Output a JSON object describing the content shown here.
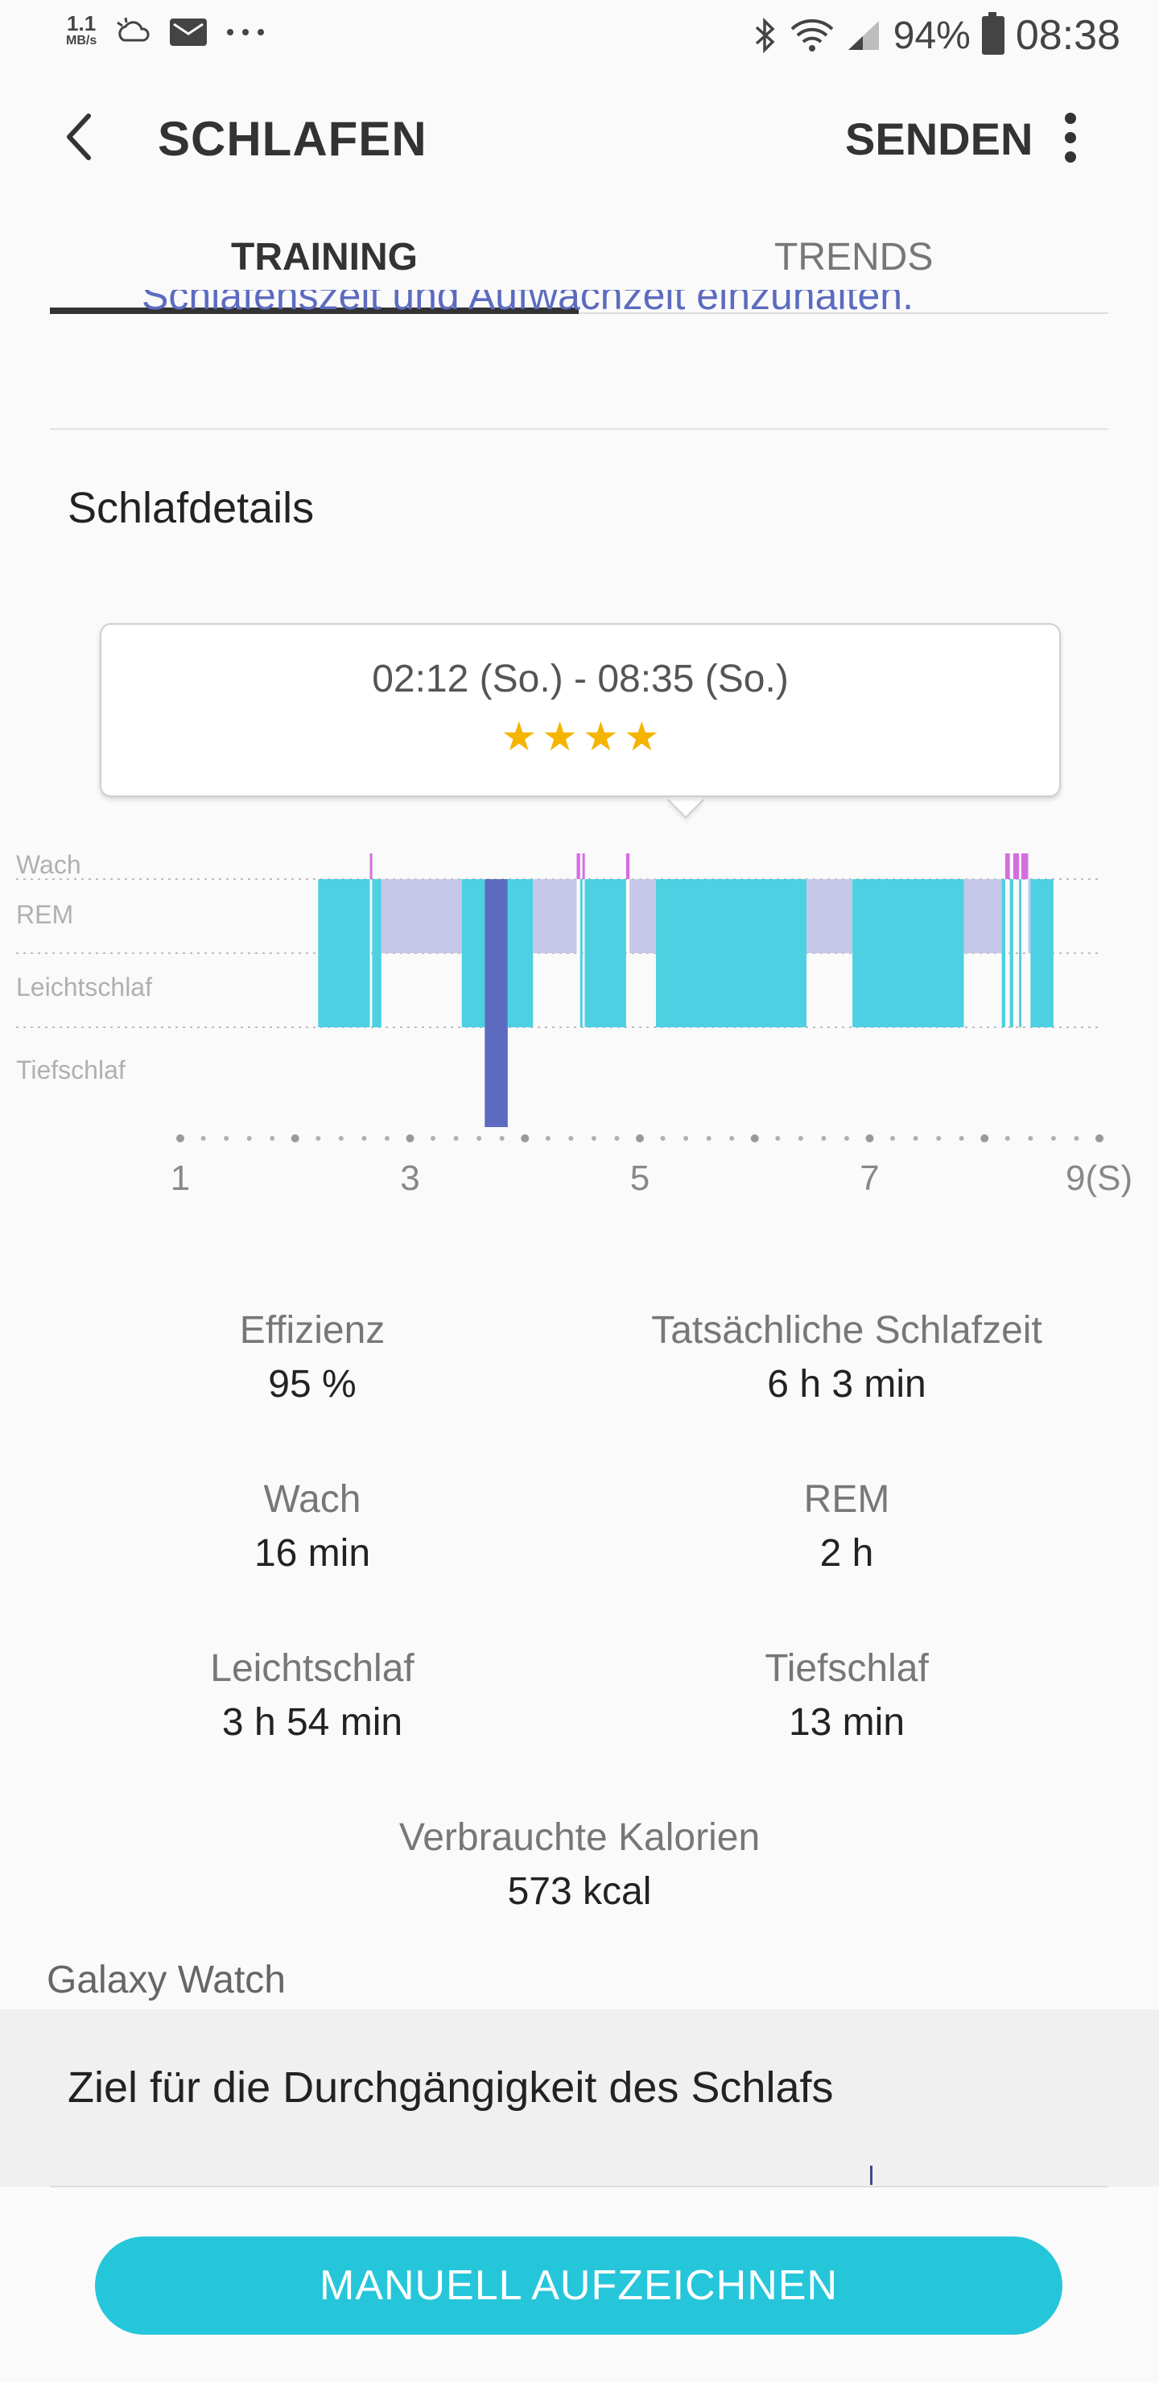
{
  "status_bar": {
    "speed_value": "1.1",
    "speed_unit": "MB/s",
    "battery": "94%",
    "time": "08:38"
  },
  "appbar": {
    "title": "SCHLAFEN",
    "send_label": "SENDEN"
  },
  "tabs": [
    {
      "label": "TRAINING",
      "active": true
    },
    {
      "label": "TRENDS",
      "active": false
    }
  ],
  "clipped_text": "Schlafenszeit und Aufwachzeit einzuhalten.",
  "section_title": "Schlafdetails",
  "bubble": {
    "range": "02:12 (So.) - 08:35 (So.)",
    "stars": 4
  },
  "chart_data": {
    "type": "bar",
    "stage_labels": [
      "Wach",
      "REM",
      "Leichtschlaf",
      "Tiefschlaf"
    ],
    "x_ticks": [
      "1",
      "3",
      "5",
      "7",
      "9(S)"
    ],
    "xlim": [
      1,
      9
    ],
    "colors": {
      "wach": "#d46ee0",
      "rem": "#c5c8e8",
      "leicht": "#4dd0e1",
      "tief": "#5c6bc0"
    },
    "segments": [
      {
        "start": 2.2,
        "end": 2.65,
        "stage": "leicht"
      },
      {
        "start": 2.65,
        "end": 2.67,
        "stage": "wach"
      },
      {
        "start": 2.67,
        "end": 2.75,
        "stage": "leicht"
      },
      {
        "start": 2.75,
        "end": 3.45,
        "stage": "rem"
      },
      {
        "start": 3.45,
        "end": 3.65,
        "stage": "leicht"
      },
      {
        "start": 3.65,
        "end": 3.85,
        "stage": "tief"
      },
      {
        "start": 3.85,
        "end": 4.07,
        "stage": "leicht"
      },
      {
        "start": 4.07,
        "end": 4.45,
        "stage": "rem"
      },
      {
        "start": 4.45,
        "end": 4.48,
        "stage": "wach"
      },
      {
        "start": 4.48,
        "end": 4.5,
        "stage": "leicht"
      },
      {
        "start": 4.5,
        "end": 4.52,
        "stage": "wach"
      },
      {
        "start": 4.52,
        "end": 4.88,
        "stage": "leicht"
      },
      {
        "start": 4.88,
        "end": 4.91,
        "stage": "wach"
      },
      {
        "start": 4.91,
        "end": 5.14,
        "stage": "rem"
      },
      {
        "start": 5.14,
        "end": 6.45,
        "stage": "leicht"
      },
      {
        "start": 6.45,
        "end": 6.85,
        "stage": "rem"
      },
      {
        "start": 6.85,
        "end": 7.82,
        "stage": "leicht"
      },
      {
        "start": 7.82,
        "end": 8.15,
        "stage": "rem"
      },
      {
        "start": 8.15,
        "end": 8.18,
        "stage": "leicht"
      },
      {
        "start": 8.18,
        "end": 8.22,
        "stage": "wach"
      },
      {
        "start": 8.22,
        "end": 8.25,
        "stage": "leicht"
      },
      {
        "start": 8.25,
        "end": 8.3,
        "stage": "wach"
      },
      {
        "start": 8.3,
        "end": 8.32,
        "stage": "leicht"
      },
      {
        "start": 8.32,
        "end": 8.38,
        "stage": "wach"
      },
      {
        "start": 8.38,
        "end": 8.4,
        "stage": "rem"
      },
      {
        "start": 8.4,
        "end": 8.6,
        "stage": "leicht"
      }
    ]
  },
  "stats": [
    {
      "label": "Effizienz",
      "value": "95 %"
    },
    {
      "label": "Tatsächliche Schlafzeit",
      "value": "6 h 3 min"
    },
    {
      "label": "Wach",
      "value": "16 min"
    },
    {
      "label": "REM",
      "value": "2 h"
    },
    {
      "label": "Leichtschlaf",
      "value": "3 h 54 min"
    },
    {
      "label": "Tiefschlaf",
      "value": "13 min"
    },
    {
      "label": "Verbrauchte Kalorien",
      "value": "573 kcal"
    }
  ],
  "device": "Galaxy Watch",
  "goal_title": "Ziel für die Durchgängigkeit des Schlafs",
  "record_button": "MANUELL AUFZEICHNEN"
}
